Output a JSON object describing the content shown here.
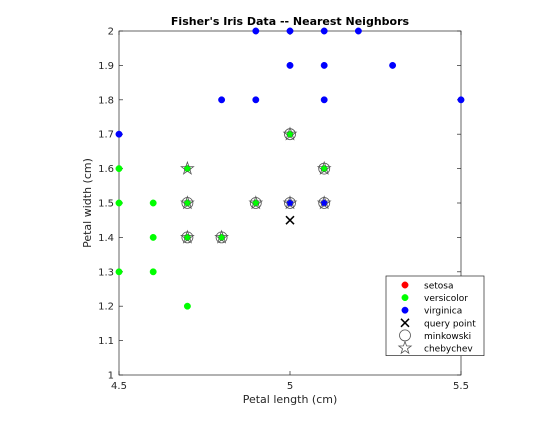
{
  "chart_data": {
    "type": "scatter",
    "title": "Fisher's Iris Data -- Nearest Neighbors",
    "xlabel": "Petal length (cm)",
    "ylabel": "Petal width (cm)",
    "xlim": [
      4.5,
      5.5
    ],
    "ylim": [
      1.0,
      2.0
    ],
    "xticks": [
      "4.5",
      "5",
      "5.5"
    ],
    "yticks": [
      "1",
      "1.1",
      "1.2",
      "1.3",
      "1.4",
      "1.5",
      "1.6",
      "1.7",
      "1.8",
      "1.9",
      "2"
    ],
    "grid": false,
    "legend_position": "bottom-right",
    "series": [
      {
        "name": "setosa",
        "marker": "dot",
        "color": "#ff0000",
        "points": []
      },
      {
        "name": "versicolor",
        "marker": "dot",
        "color": "#00ff00",
        "points": [
          [
            4.5,
            1.6
          ],
          [
            4.5,
            1.5
          ],
          [
            4.5,
            1.3
          ],
          [
            4.6,
            1.5
          ],
          [
            4.6,
            1.4
          ],
          [
            4.6,
            1.3
          ],
          [
            4.7,
            1.6
          ],
          [
            4.7,
            1.5
          ],
          [
            4.7,
            1.4
          ],
          [
            4.7,
            1.2
          ],
          [
            4.8,
            1.4
          ],
          [
            4.9,
            1.5
          ],
          [
            5.0,
            1.7
          ],
          [
            5.1,
            1.6
          ]
        ]
      },
      {
        "name": "virginica",
        "marker": "dot",
        "color": "#0000ff",
        "points": [
          [
            4.5,
            1.7
          ],
          [
            4.8,
            1.8
          ],
          [
            4.9,
            2.0
          ],
          [
            4.9,
            1.8
          ],
          [
            5.0,
            2.0
          ],
          [
            5.0,
            1.9
          ],
          [
            5.0,
            1.5
          ],
          [
            5.1,
            2.0
          ],
          [
            5.1,
            1.9
          ],
          [
            5.1,
            1.8
          ],
          [
            5.1,
            1.5
          ],
          [
            5.2,
            2.0
          ],
          [
            5.3,
            1.9
          ],
          [
            5.5,
            1.8
          ]
        ]
      },
      {
        "name": "query point",
        "marker": "x",
        "color": "#000000",
        "points": [
          [
            5.0,
            1.45
          ]
        ]
      },
      {
        "name": "minkowski",
        "marker": "circle",
        "color": "#000000",
        "points": [
          [
            4.7,
            1.5
          ],
          [
            4.7,
            1.4
          ],
          [
            4.8,
            1.4
          ],
          [
            4.9,
            1.5
          ],
          [
            5.0,
            1.7
          ],
          [
            5.0,
            1.5
          ],
          [
            5.1,
            1.6
          ],
          [
            5.1,
            1.5
          ]
        ]
      },
      {
        "name": "chebychev",
        "marker": "star",
        "color": "#000000",
        "points": [
          [
            4.7,
            1.6
          ],
          [
            4.7,
            1.5
          ],
          [
            4.7,
            1.4
          ],
          [
            4.8,
            1.4
          ],
          [
            4.9,
            1.5
          ],
          [
            5.0,
            1.7
          ],
          [
            5.0,
            1.5
          ],
          [
            5.1,
            1.6
          ],
          [
            5.1,
            1.5
          ]
        ]
      }
    ]
  }
}
